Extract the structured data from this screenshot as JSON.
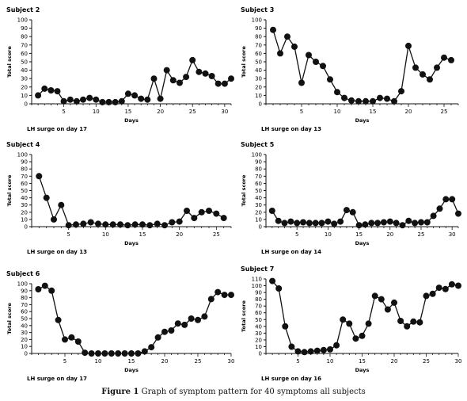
{
  "caption": {
    "label": "Figure 1",
    "text": "Graph of symptom pattern for 40 symptoms  all subjects"
  },
  "chart_data": [
    {
      "type": "line",
      "title": "Subject 2",
      "xlabel": "Days",
      "ylabel": "Total score",
      "note": "LH surge on day 17",
      "xlim": [
        0,
        31
      ],
      "ylim": [
        0,
        100
      ],
      "xticks": [
        5,
        10,
        15,
        20,
        25,
        30
      ],
      "yticks": [
        0,
        10,
        20,
        30,
        40,
        50,
        60,
        70,
        80,
        90,
        100
      ],
      "series": [
        {
          "x": [
            1,
            2,
            3,
            4,
            5,
            6,
            7,
            8,
            9,
            10,
            11,
            12,
            13,
            14,
            15,
            16,
            17,
            18,
            19,
            20,
            21,
            22,
            23,
            24,
            25,
            26,
            27,
            28,
            29,
            30,
            31
          ],
          "y": [
            10,
            18,
            16,
            15,
            3,
            5,
            3,
            5,
            7,
            5,
            2,
            2,
            2,
            3,
            12,
            10,
            6,
            5,
            30,
            6,
            40,
            28,
            25,
            32,
            52,
            38,
            36,
            33,
            24,
            24,
            30
          ]
        }
      ]
    },
    {
      "type": "line",
      "title": "Subject 3",
      "xlabel": "Days",
      "ylabel": "Total score",
      "note": "LH surge on day 13",
      "xlim": [
        0,
        27
      ],
      "ylim": [
        0,
        100
      ],
      "xticks": [
        5,
        10,
        15,
        20,
        25
      ],
      "yticks": [
        0,
        10,
        20,
        30,
        40,
        50,
        60,
        70,
        80,
        90,
        100
      ],
      "series": [
        {
          "x": [
            1,
            2,
            3,
            4,
            5,
            6,
            7,
            8,
            9,
            10,
            11,
            12,
            13,
            14,
            15,
            16,
            17,
            18,
            19,
            20,
            21,
            22,
            23,
            24,
            25,
            26
          ],
          "y": [
            88,
            60,
            80,
            68,
            25,
            58,
            50,
            45,
            29,
            14,
            7,
            4,
            3,
            3,
            3,
            7,
            6,
            3,
            15,
            69,
            43,
            35,
            29,
            43,
            55,
            52
          ]
        }
      ]
    },
    {
      "type": "line",
      "title": "Subject 4",
      "xlabel": "Days",
      "ylabel": "Total score",
      "note": "LH surge on day 13",
      "xlim": [
        0,
        27
      ],
      "ylim": [
        0,
        100
      ],
      "xticks": [
        5,
        10,
        15,
        20,
        25
      ],
      "yticks": [
        0,
        10,
        20,
        30,
        40,
        50,
        60,
        70,
        80,
        90,
        100
      ],
      "series": [
        {
          "x": [
            1,
            2,
            3,
            4,
            5,
            6,
            7,
            8,
            9,
            10,
            11,
            12,
            13,
            14,
            15,
            16,
            17,
            18,
            19,
            20,
            21,
            22,
            23,
            24,
            25,
            26
          ],
          "y": [
            70,
            40,
            10,
            30,
            2,
            3,
            4,
            6,
            4,
            3,
            3,
            3,
            2,
            3,
            3,
            2,
            4,
            2,
            6,
            7,
            22,
            12,
            20,
            22,
            18,
            12
          ]
        }
      ]
    },
    {
      "type": "line",
      "title": "Subject 5",
      "xlabel": "Days",
      "ylabel": "Total score",
      "note": "LH surge on day 14",
      "xlim": [
        0,
        31
      ],
      "ylim": [
        0,
        100
      ],
      "xticks": [
        5,
        10,
        15,
        20,
        25,
        30
      ],
      "yticks": [
        0,
        10,
        20,
        30,
        40,
        50,
        60,
        70,
        80,
        90,
        100
      ],
      "series": [
        {
          "x": [
            1,
            2,
            3,
            4,
            5,
            6,
            7,
            8,
            9,
            10,
            11,
            12,
            13,
            14,
            15,
            16,
            17,
            18,
            19,
            20,
            21,
            22,
            23,
            24,
            25,
            26,
            27,
            28,
            29,
            30,
            31
          ],
          "y": [
            22,
            8,
            5,
            7,
            5,
            6,
            5,
            5,
            5,
            7,
            4,
            7,
            23,
            20,
            2,
            3,
            5,
            5,
            6,
            7,
            5,
            2,
            8,
            5,
            6,
            6,
            15,
            25,
            38,
            38,
            18
          ]
        }
      ]
    },
    {
      "type": "line",
      "title": "Subject 6",
      "xlabel": "Days",
      "ylabel": "Total score",
      "note": "LH surge on day 17",
      "xlim": [
        0,
        30
      ],
      "ylim": [
        0,
        100
      ],
      "xticks": [
        5,
        10,
        15,
        20,
        25,
        30
      ],
      "yticks": [
        0,
        10,
        20,
        30,
        40,
        50,
        60,
        70,
        80,
        90,
        100
      ],
      "series": [
        {
          "x": [
            1,
            2,
            3,
            4,
            5,
            6,
            7,
            8,
            9,
            10,
            11,
            12,
            13,
            14,
            15,
            16,
            17,
            18,
            19,
            20,
            21,
            22,
            23,
            24,
            25,
            26,
            27,
            28,
            29,
            30
          ],
          "y": [
            92,
            97,
            90,
            48,
            20,
            23,
            17,
            1,
            0,
            0,
            0,
            0,
            0,
            0,
            0,
            0,
            3,
            9,
            23,
            31,
            33,
            43,
            41,
            50,
            48,
            53,
            78,
            88,
            84,
            84
          ]
        }
      ]
    },
    {
      "type": "line",
      "title": "Subject 7",
      "xlabel": "Days",
      "ylabel": "Total score",
      "note": "LH surge on day 16",
      "xlim": [
        0,
        30
      ],
      "ylim": [
        0,
        110
      ],
      "xticks": [
        5,
        10,
        15,
        20,
        25,
        30
      ],
      "yticks": [
        0,
        10,
        20,
        30,
        40,
        50,
        60,
        70,
        80,
        90,
        100,
        110
      ],
      "series": [
        {
          "x": [
            1,
            2,
            3,
            4,
            5,
            6,
            7,
            8,
            9,
            10,
            11,
            12,
            13,
            14,
            15,
            16,
            17,
            18,
            19,
            20,
            21,
            22,
            23,
            24,
            25,
            26,
            27,
            28,
            29,
            30
          ],
          "y": [
            107,
            96,
            40,
            10,
            3,
            2,
            3,
            4,
            5,
            6,
            12,
            50,
            44,
            22,
            26,
            44,
            85,
            80,
            65,
            75,
            48,
            40,
            47,
            46,
            85,
            88,
            97,
            95,
            102,
            100
          ]
        }
      ]
    }
  ]
}
